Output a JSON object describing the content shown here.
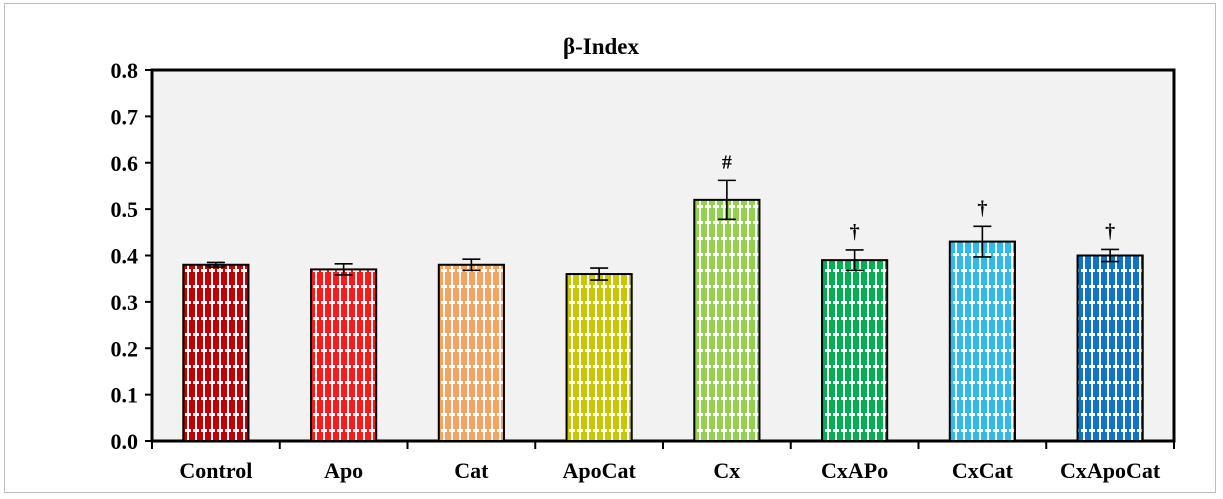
{
  "chart_data": {
    "type": "bar",
    "title": "β-Index",
    "xlabel": "",
    "ylabel": "",
    "ylim": [
      0,
      0.8
    ],
    "yticks": [
      "0.0",
      "0.1",
      "0.2",
      "0.3",
      "0.4",
      "0.5",
      "0.6",
      "0.7",
      "0.8"
    ],
    "categories": [
      "Control",
      "Apo",
      "Cat",
      "ApoCat",
      "Cx",
      "CxAPo",
      "CxCat",
      "CxApoCat"
    ],
    "values": [
      0.38,
      0.37,
      0.38,
      0.36,
      0.52,
      0.39,
      0.43,
      0.4
    ],
    "errors": [
      0.005,
      0.012,
      0.012,
      0.013,
      0.042,
      0.022,
      0.033,
      0.013
    ],
    "annotations": [
      "",
      "",
      "",
      "",
      "#",
      "†",
      "†",
      "†"
    ],
    "colors": [
      "#c00000",
      "#ff1a1a",
      "#f4a460",
      "#c8c800",
      "#92d050",
      "#00b050",
      "#33b8ea",
      "#0f74c7"
    ],
    "plot_background": "#f2f2f2",
    "grid": false,
    "legend": "none"
  }
}
